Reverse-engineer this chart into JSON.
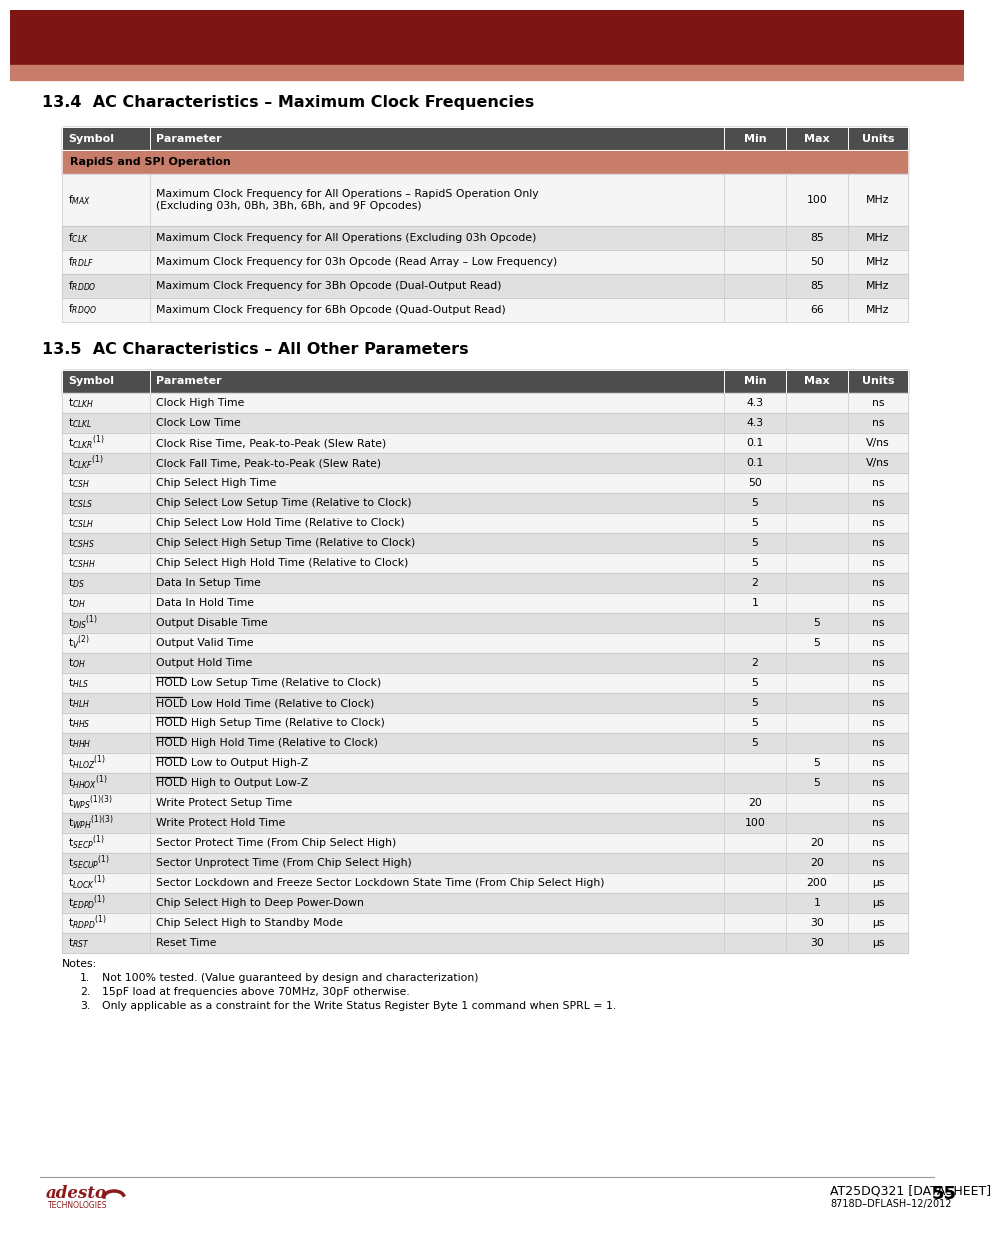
{
  "header_bg": "#4d4d4d",
  "rapidspi_bg": "#c87d6a",
  "row_alt": "#e0e0e0",
  "row_white": "#f5f5f5",
  "top_bar_dark": "#7d1515",
  "top_bar_light": "#c87d6a",
  "page_bg": "#ffffff",
  "title1": "13.4  AC Characteristics – Maximum Clock Frequencies",
  "title2": "13.5  AC Characteristics – All Other Parameters",
  "table_headers": [
    "Symbol",
    "Parameter",
    "Min",
    "Max",
    "Units"
  ],
  "table1_subheader": "RapidS and SPI Operation",
  "col_widths1": [
    88,
    574,
    62,
    62,
    60
  ],
  "col_widths2": [
    88,
    574,
    62,
    62,
    60
  ],
  "table1_symbols": [
    "f$_{MAX}$",
    "f$_{CLK}$",
    "f$_{RDLF}$",
    "f$_{RDDO}$",
    "f$_{RDQO}$"
  ],
  "table1_params": [
    "Maximum Clock Frequency for All Operations – RapidS Operation Only\n(Excluding 03h, 0Bh, 3Bh, 6Bh, and 9F Opcodes)",
    "Maximum Clock Frequency for All Operations (Excluding 03h Opcode)",
    "Maximum Clock Frequency for 03h Opcode (Read Array – Low Frequency)",
    "Maximum Clock Frequency for 3Bh Opcode (Dual-Output Read)",
    "Maximum Clock Frequency for 6Bh Opcode (Quad-Output Read)"
  ],
  "table1_mins": [
    "",
    "",
    "",
    "",
    ""
  ],
  "table1_maxs": [
    "100",
    "85",
    "50",
    "85",
    "66"
  ],
  "table1_units": [
    "MHz",
    "MHz",
    "MHz",
    "MHz",
    "MHz"
  ],
  "table2_symbols": [
    "t$_{CLKH}$",
    "t$_{CLKL}$",
    "t$_{CLKR}$$^{(1)}$",
    "t$_{CLKF}$$^{(1)}$",
    "t$_{CSH}$",
    "t$_{CSLS}$",
    "t$_{CSLH}$",
    "t$_{CSHS}$",
    "t$_{CSHH}$",
    "t$_{DS}$",
    "t$_{DH}$",
    "t$_{DIS}$$^{(1)}$",
    "t$_V$$^{(2)}$",
    "t$_{OH}$",
    "t$_{HLS}$",
    "t$_{HLH}$",
    "t$_{HHS}$",
    "t$_{HHH}$",
    "t$_{HLOZ}$$^{(1)}$",
    "t$_{HHOX}$$^{(1)}$",
    "t$_{WPS}$$^{(1)(3)}$",
    "t$_{WPH}$$^{(1)(3)}$",
    "t$_{SECP}$$^{(1)}$",
    "t$_{SECUP}$$^{(1)}$",
    "t$_{LOCK}$$^{(1)}$",
    "t$_{EDPD}$$^{(1)}$",
    "t$_{RDPD}$$^{(1)}$",
    "t$_{RST}$"
  ],
  "table2_params": [
    "Clock High Time",
    "Clock Low Time",
    "Clock Rise Time, Peak-to-Peak (Slew Rate)",
    "Clock Fall Time, Peak-to-Peak (Slew Rate)",
    "Chip Select High Time",
    "Chip Select Low Setup Time (Relative to Clock)",
    "Chip Select Low Hold Time (Relative to Clock)",
    "Chip Select High Setup Time (Relative to Clock)",
    "Chip Select High Hold Time (Relative to Clock)",
    "Data In Setup Time",
    "Data In Hold Time",
    "Output Disable Time",
    "Output Valid Time",
    "Output Hold Time",
    "HOLD Low Setup Time (Relative to Clock)",
    "HOLD Low Hold Time (Relative to Clock)",
    "HOLD High Setup Time (Relative to Clock)",
    "HOLD High Hold Time (Relative to Clock)",
    "HOLD Low to Output High-Z",
    "HOLD High to Output Low-Z",
    "Write Protect Setup Time",
    "Write Protect Hold Time",
    "Sector Protect Time (From Chip Select High)",
    "Sector Unprotect Time (From Chip Select High)",
    "Sector Lockdown and Freeze Sector Lockdown State Time (From Chip Select High)",
    "Chip Select High to Deep Power-Down",
    "Chip Select High to Standby Mode",
    "Reset Time"
  ],
  "table2_mins": [
    "4.3",
    "4.3",
    "0.1",
    "0.1",
    "50",
    "5",
    "5",
    "5",
    "5",
    "2",
    "1",
    "",
    "",
    "2",
    "5",
    "5",
    "5",
    "5",
    "",
    "",
    "20",
    "100",
    "",
    "",
    "",
    "",
    "",
    ""
  ],
  "table2_maxs": [
    "",
    "",
    "",
    "",
    "",
    "",
    "",
    "",
    "",
    "",
    "",
    "5",
    "5",
    "",
    "",
    "",
    "",
    "",
    "5",
    "5",
    "",
    "",
    "20",
    "20",
    "200",
    "1",
    "30",
    "30"
  ],
  "table2_units": [
    "ns",
    "ns",
    "V/ns",
    "V/ns",
    "ns",
    "ns",
    "ns",
    "ns",
    "ns",
    "ns",
    "ns",
    "ns",
    "ns",
    "ns",
    "ns",
    "ns",
    "ns",
    "ns",
    "ns",
    "ns",
    "ns",
    "ns",
    "ns",
    "ns",
    "μs",
    "μs",
    "μs",
    "μs"
  ],
  "hold_rows": [
    14,
    15,
    16,
    17,
    18,
    19
  ],
  "notes": [
    [
      "1.",
      "Not 100% tested. (Value guaranteed by design and characterization)"
    ],
    [
      "2.",
      "15pF load at frequencies above 70MHz, 30pF otherwise."
    ],
    [
      "3.",
      "Only applicable as a constraint for the Write Status Register Byte 1 command when SPRL = 1."
    ]
  ],
  "footer_right1": "AT25DQ321 [DATASHEET]",
  "footer_right2": "8718D–DFLASH–12/2012",
  "page_num": "55"
}
